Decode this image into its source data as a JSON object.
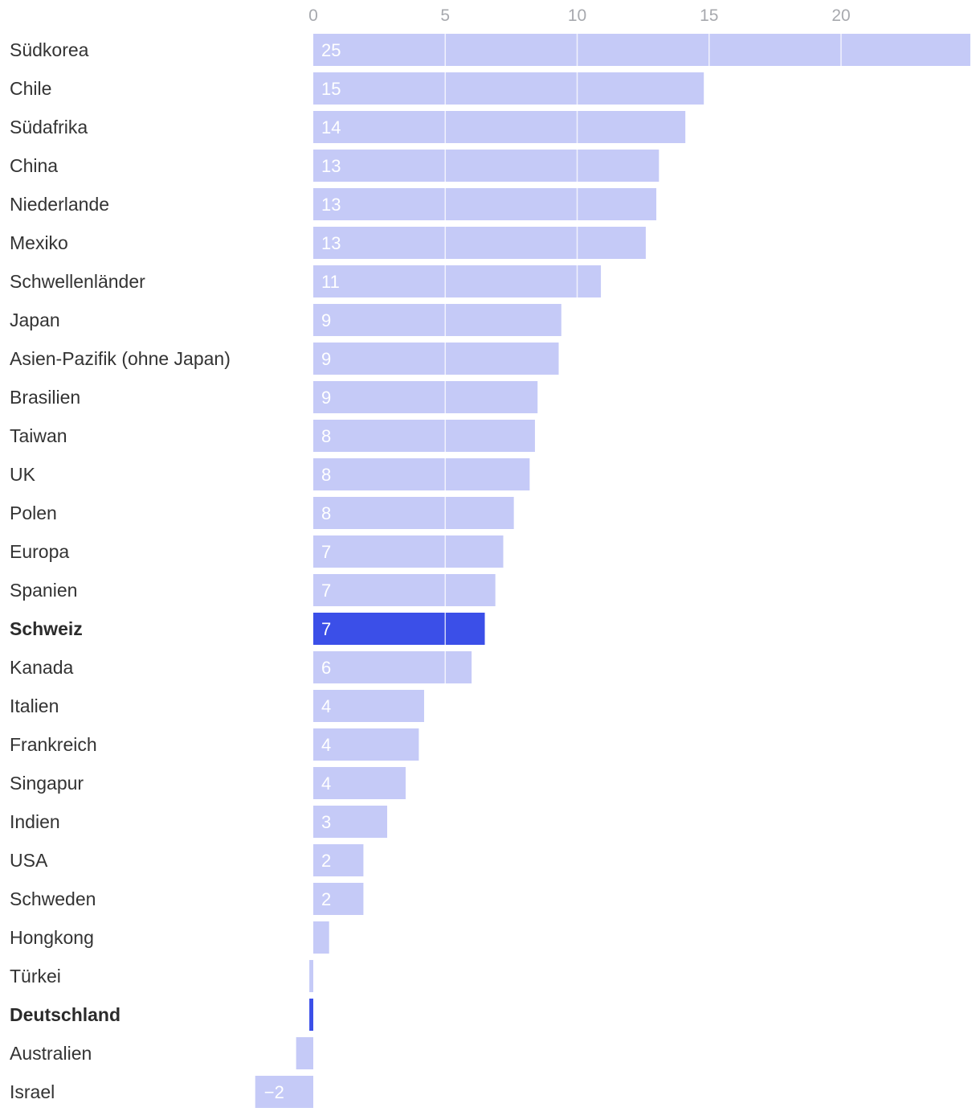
{
  "chart_data": {
    "type": "bar",
    "orientation": "horizontal",
    "title": "",
    "xlabel": "",
    "ylabel": "",
    "xlim": [
      -2.2,
      25
    ],
    "x_ticks": [
      0,
      5,
      10,
      15,
      20
    ],
    "x_tick_labels": [
      "0",
      "5",
      "10",
      "15",
      "20"
    ],
    "grid": true,
    "colors": {
      "default": "#c5caf7",
      "highlight": "#3b4fe8",
      "gridline": "#ffffff",
      "tick_label": "#a7a9ae",
      "category_label": "#333333",
      "data_label": "#ffffff"
    },
    "bars": [
      {
        "category": "Südkorea",
        "value": 24.9,
        "label": "25",
        "highlight": false
      },
      {
        "category": "Chile",
        "value": 14.8,
        "label": "15",
        "highlight": false
      },
      {
        "category": "Südafrika",
        "value": 14.1,
        "label": "14",
        "highlight": false
      },
      {
        "category": "China",
        "value": 13.1,
        "label": "13",
        "highlight": false
      },
      {
        "category": "Niederlande",
        "value": 13.0,
        "label": "13",
        "highlight": false
      },
      {
        "category": "Mexiko",
        "value": 12.6,
        "label": "13",
        "highlight": false
      },
      {
        "category": "Schwellenländer",
        "value": 10.9,
        "label": "11",
        "highlight": false
      },
      {
        "category": "Japan",
        "value": 9.4,
        "label": "9",
        "highlight": false
      },
      {
        "category": "Asien-Pazifik (ohne Japan)",
        "value": 9.3,
        "label": "9",
        "highlight": false
      },
      {
        "category": "Brasilien",
        "value": 8.5,
        "label": "9",
        "highlight": false
      },
      {
        "category": "Taiwan",
        "value": 8.4,
        "label": "8",
        "highlight": false
      },
      {
        "category": "UK",
        "value": 8.2,
        "label": "8",
        "highlight": false
      },
      {
        "category": "Polen",
        "value": 7.6,
        "label": "8",
        "highlight": false
      },
      {
        "category": "Europa",
        "value": 7.2,
        "label": "7",
        "highlight": false
      },
      {
        "category": "Spanien",
        "value": 6.9,
        "label": "7",
        "highlight": false
      },
      {
        "category": "Schweiz",
        "value": 6.5,
        "label": "7",
        "highlight": true
      },
      {
        "category": "Kanada",
        "value": 6.0,
        "label": "6",
        "highlight": false
      },
      {
        "category": "Italien",
        "value": 4.2,
        "label": "4",
        "highlight": false
      },
      {
        "category": "Frankreich",
        "value": 4.0,
        "label": "4",
        "highlight": false
      },
      {
        "category": "Singapur",
        "value": 3.5,
        "label": "4",
        "highlight": false
      },
      {
        "category": "Indien",
        "value": 2.8,
        "label": "3",
        "highlight": false
      },
      {
        "category": "USA",
        "value": 1.9,
        "label": "2",
        "highlight": false
      },
      {
        "category": "Schweden",
        "value": 1.9,
        "label": "2",
        "highlight": false
      },
      {
        "category": "Hongkong",
        "value": 0.6,
        "label": "",
        "highlight": false
      },
      {
        "category": "Türkei",
        "value": -0.15,
        "label": "",
        "highlight": false
      },
      {
        "category": "Deutschland",
        "value": -0.15,
        "label": "",
        "highlight": true
      },
      {
        "category": "Australien",
        "value": -0.65,
        "label": "",
        "highlight": false
      },
      {
        "category": "Israel",
        "value": -2.2,
        "label": "−2",
        "highlight": false
      }
    ]
  }
}
